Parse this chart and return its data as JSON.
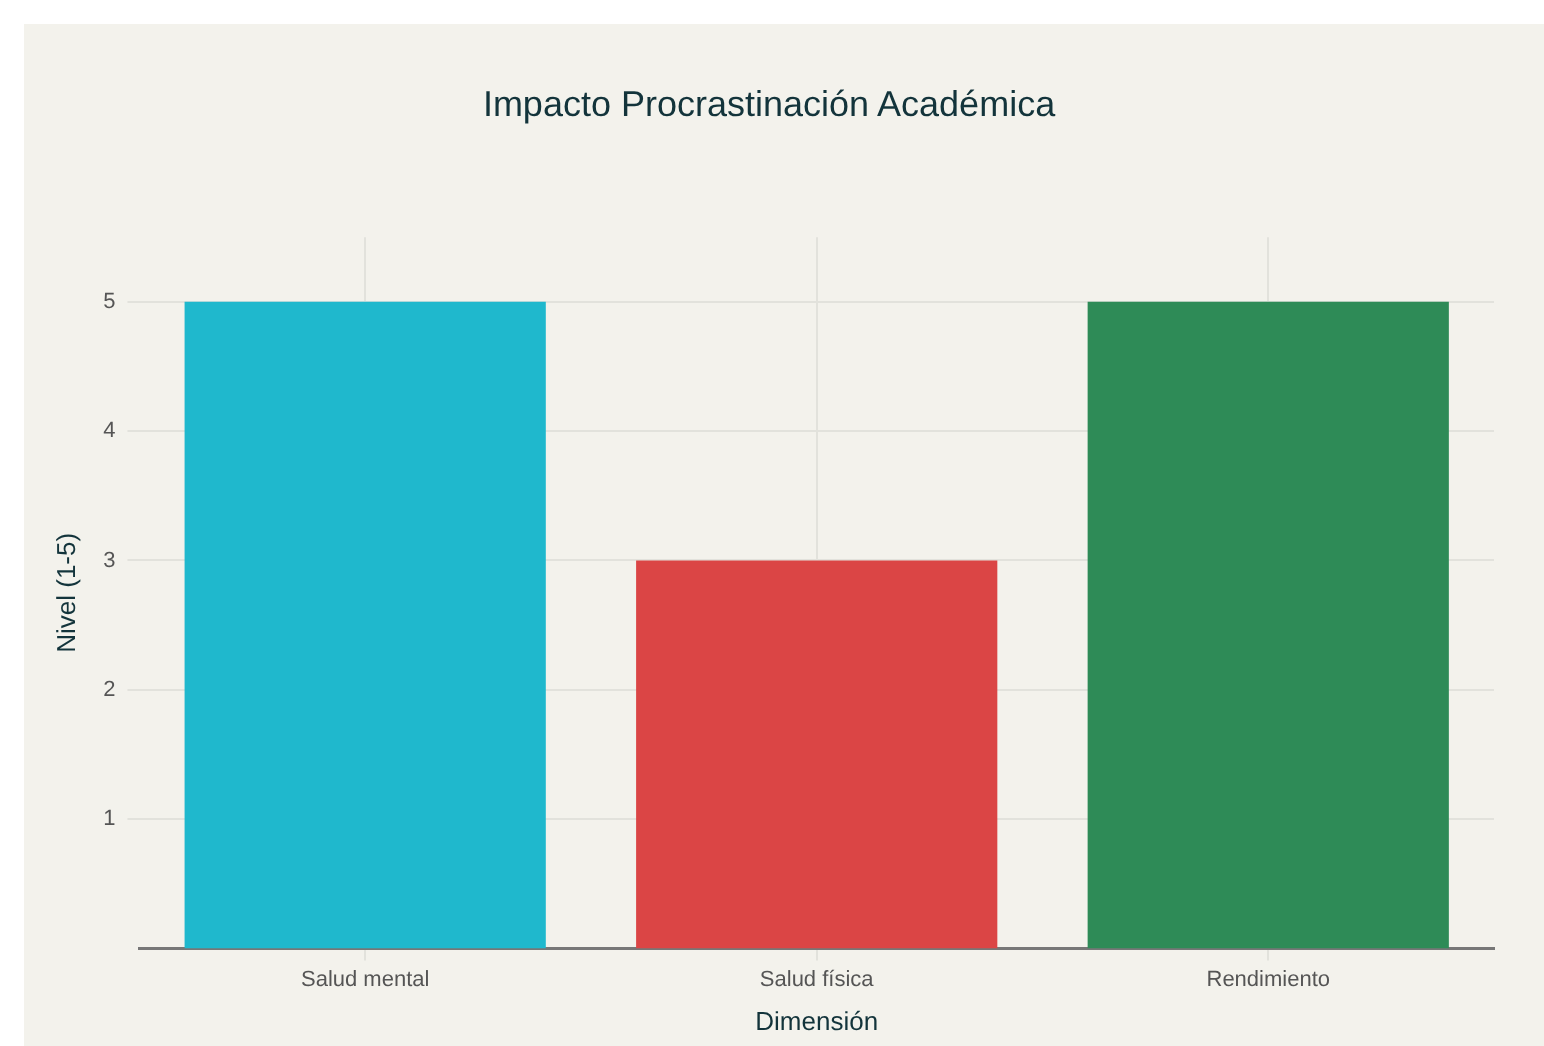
{
  "chart_data": {
    "type": "bar",
    "title": "Impacto Procrastinación Académica",
    "xlabel": "Dimensión",
    "ylabel": "Nivel (1-5)",
    "categories": [
      "Salud mental",
      "Salud física",
      "Rendimiento"
    ],
    "values": [
      5,
      3,
      5
    ],
    "colors": [
      "#1fb8cd",
      "#db4545",
      "#2e8b57"
    ],
    "ylim": [
      0,
      5.5
    ],
    "yticks": [
      1,
      2,
      3,
      4,
      5
    ],
    "grid": true,
    "legend": false
  }
}
